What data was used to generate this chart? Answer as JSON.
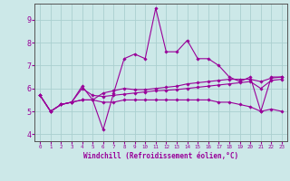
{
  "xlabel": "Windchill (Refroidissement éolien,°C)",
  "xlim": [
    -0.5,
    23.5
  ],
  "ylim": [
    3.7,
    9.7
  ],
  "yticks": [
    4,
    5,
    6,
    7,
    8,
    9
  ],
  "xticks": [
    0,
    1,
    2,
    3,
    4,
    5,
    6,
    7,
    8,
    9,
    10,
    11,
    12,
    13,
    14,
    15,
    16,
    17,
    18,
    19,
    20,
    21,
    22,
    23
  ],
  "background_color": "#cce8e8",
  "grid_color": "#aacfcf",
  "line_color": "#990099",
  "lines": [
    [
      5.7,
      5.0,
      5.3,
      5.4,
      6.1,
      5.5,
      4.2,
      5.8,
      7.3,
      7.5,
      7.3,
      9.5,
      7.6,
      7.6,
      8.1,
      7.3,
      7.3,
      7.0,
      6.5,
      6.3,
      6.5,
      5.0,
      6.5,
      6.5
    ],
    [
      5.7,
      5.0,
      5.3,
      5.4,
      5.5,
      5.5,
      5.8,
      5.9,
      6.0,
      5.95,
      5.95,
      6.0,
      6.05,
      6.1,
      6.2,
      6.25,
      6.3,
      6.35,
      6.4,
      6.4,
      6.4,
      6.3,
      6.45,
      6.5
    ],
    [
      5.7,
      5.0,
      5.3,
      5.4,
      5.5,
      5.5,
      5.4,
      5.4,
      5.5,
      5.5,
      5.5,
      5.5,
      5.5,
      5.5,
      5.5,
      5.5,
      5.5,
      5.4,
      5.4,
      5.3,
      5.2,
      5.0,
      5.1,
      5.0
    ],
    [
      5.7,
      5.0,
      5.3,
      5.4,
      6.0,
      5.7,
      5.65,
      5.7,
      5.75,
      5.8,
      5.85,
      5.9,
      5.92,
      5.95,
      6.0,
      6.05,
      6.1,
      6.15,
      6.2,
      6.25,
      6.3,
      6.0,
      6.35,
      6.4
    ]
  ]
}
